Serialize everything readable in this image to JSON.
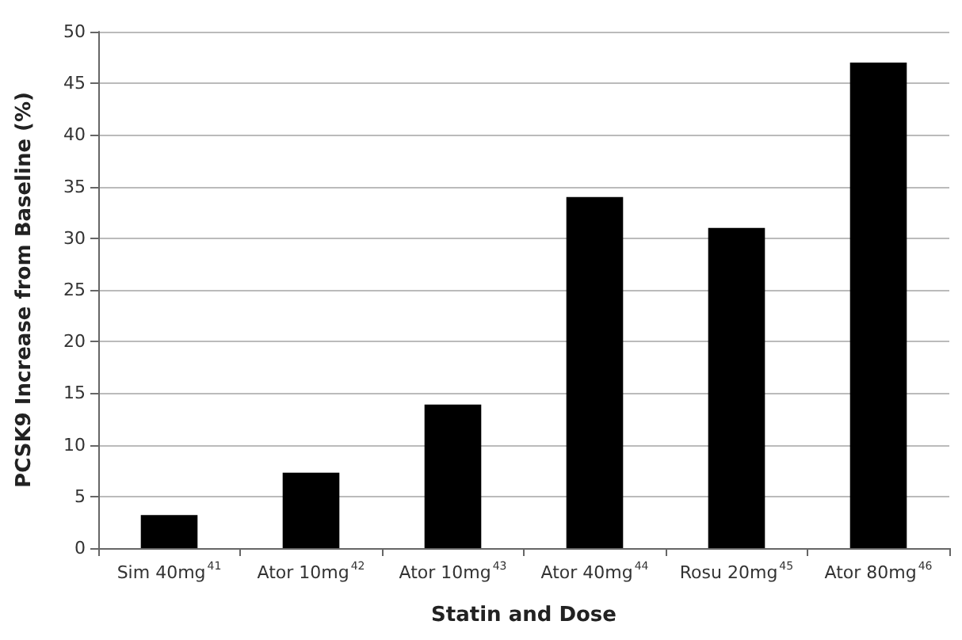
{
  "chart_data": {
    "type": "bar",
    "xlabel": "Statin and Dose",
    "ylabel": "PCSK9 Increase from Baseline (%)",
    "categories": [
      "Sim 40mg$^{41}$",
      "Ator 10mg$^{42}$",
      "Ator 10mg$^{43}$",
      "Ator 40mg$^{44}$",
      "Rosu 20mg$^{45}$",
      "Ator 80mg$^{46}$"
    ],
    "values": [
      3.2,
      7.3,
      13.9,
      34,
      31,
      47
    ],
    "color": "#000000",
    "ylim": [
      0,
      50
    ],
    "yticks": [
      0,
      5,
      10,
      15,
      20,
      25,
      30,
      35,
      40,
      45,
      50
    ],
    "grid": "y"
  }
}
